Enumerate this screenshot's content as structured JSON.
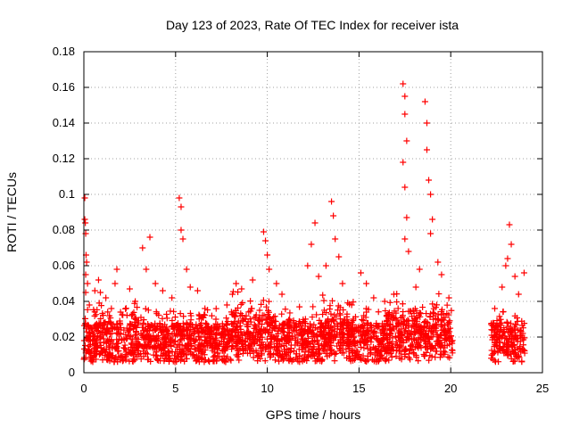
{
  "colors": {
    "series": "#ff0000",
    "grid": "#a0a0a0",
    "background": "#ffffff"
  },
  "chart_data": {
    "type": "scatter",
    "title": "Day 123 of 2023, Rate Of TEC Index for receiver ista",
    "xlabel": "GPS time / hours",
    "ylabel": "ROTI / TECUs",
    "xlim": [
      0,
      25
    ],
    "ylim": [
      0,
      0.18
    ],
    "xticks": [
      0,
      5,
      10,
      15,
      20,
      25
    ],
    "yticks": [
      0,
      0.02,
      0.04,
      0.06,
      0.08,
      0.1,
      0.12,
      0.14,
      0.16,
      0.18
    ],
    "xtick_labels": [
      "0",
      "5",
      "10",
      "15",
      "20",
      "25"
    ],
    "ytick_labels": [
      "0",
      "0.02",
      "0.04",
      "0.06",
      "0.08",
      "0.1",
      "0.12",
      "0.14",
      "0.16",
      "0.18"
    ],
    "grid": true,
    "marker": "+",
    "data_gap_hours": [
      20.1,
      22.2
    ],
    "series": [
      {
        "points": [
          [
            0.05,
            0.098
          ],
          [
            0.05,
            0.086
          ],
          [
            0.08,
            0.084
          ],
          [
            0.1,
            0.078
          ],
          [
            0.12,
            0.066
          ],
          [
            0.15,
            0.062
          ],
          [
            0.1,
            0.055
          ],
          [
            0.2,
            0.05
          ],
          [
            0.1,
            0.045
          ],
          [
            0.3,
            0.038
          ],
          [
            0.6,
            0.046
          ],
          [
            0.8,
            0.052
          ],
          [
            0.9,
            0.045
          ],
          [
            1.2,
            0.042
          ],
          [
            1.5,
            0.036
          ],
          [
            1.7,
            0.05
          ],
          [
            1.8,
            0.058
          ],
          [
            2.0,
            0.034
          ],
          [
            2.5,
            0.047
          ],
          [
            2.8,
            0.04
          ],
          [
            3.2,
            0.07
          ],
          [
            3.4,
            0.058
          ],
          [
            3.6,
            0.076
          ],
          [
            3.9,
            0.05
          ],
          [
            4.3,
            0.046
          ],
          [
            4.8,
            0.042
          ],
          [
            5.2,
            0.098
          ],
          [
            5.3,
            0.093
          ],
          [
            5.3,
            0.08
          ],
          [
            5.4,
            0.075
          ],
          [
            5.6,
            0.058
          ],
          [
            5.8,
            0.048
          ],
          [
            6.2,
            0.046
          ],
          [
            6.6,
            0.036
          ],
          [
            7.2,
            0.03
          ],
          [
            7.8,
            0.038
          ],
          [
            8.1,
            0.044
          ],
          [
            8.3,
            0.05
          ],
          [
            8.6,
            0.047
          ],
          [
            9.2,
            0.052
          ],
          [
            9.8,
            0.079
          ],
          [
            9.9,
            0.074
          ],
          [
            10.0,
            0.066
          ],
          [
            10.1,
            0.058
          ],
          [
            10.5,
            0.05
          ],
          [
            10.8,
            0.044
          ],
          [
            11.2,
            0.028
          ],
          [
            11.6,
            0.026
          ],
          [
            12.2,
            0.06
          ],
          [
            12.4,
            0.072
          ],
          [
            12.6,
            0.084
          ],
          [
            12.8,
            0.054
          ],
          [
            13.2,
            0.06
          ],
          [
            13.5,
            0.096
          ],
          [
            13.6,
            0.088
          ],
          [
            13.7,
            0.075
          ],
          [
            13.9,
            0.065
          ],
          [
            14.1,
            0.05
          ],
          [
            14.6,
            0.038
          ],
          [
            15.1,
            0.056
          ],
          [
            15.4,
            0.05
          ],
          [
            15.8,
            0.042
          ],
          [
            16.4,
            0.04
          ],
          [
            16.9,
            0.044
          ],
          [
            17.4,
            0.162
          ],
          [
            17.5,
            0.155
          ],
          [
            17.5,
            0.145
          ],
          [
            17.6,
            0.13
          ],
          [
            17.4,
            0.118
          ],
          [
            17.5,
            0.104
          ],
          [
            17.6,
            0.087
          ],
          [
            17.5,
            0.075
          ],
          [
            17.7,
            0.068
          ],
          [
            18.1,
            0.048
          ],
          [
            18.3,
            0.058
          ],
          [
            18.6,
            0.152
          ],
          [
            18.7,
            0.14
          ],
          [
            18.7,
            0.125
          ],
          [
            18.8,
            0.108
          ],
          [
            18.9,
            0.1
          ],
          [
            19.0,
            0.086
          ],
          [
            18.9,
            0.078
          ],
          [
            19.3,
            0.062
          ],
          [
            19.5,
            0.055
          ],
          [
            19.9,
            0.042
          ],
          [
            22.4,
            0.036
          ],
          [
            22.8,
            0.048
          ],
          [
            23.0,
            0.06
          ],
          [
            23.2,
            0.083
          ],
          [
            23.3,
            0.072
          ],
          [
            23.1,
            0.064
          ],
          [
            23.5,
            0.054
          ],
          [
            23.7,
            0.044
          ],
          [
            24.0,
            0.056
          ]
        ]
      }
    ]
  }
}
